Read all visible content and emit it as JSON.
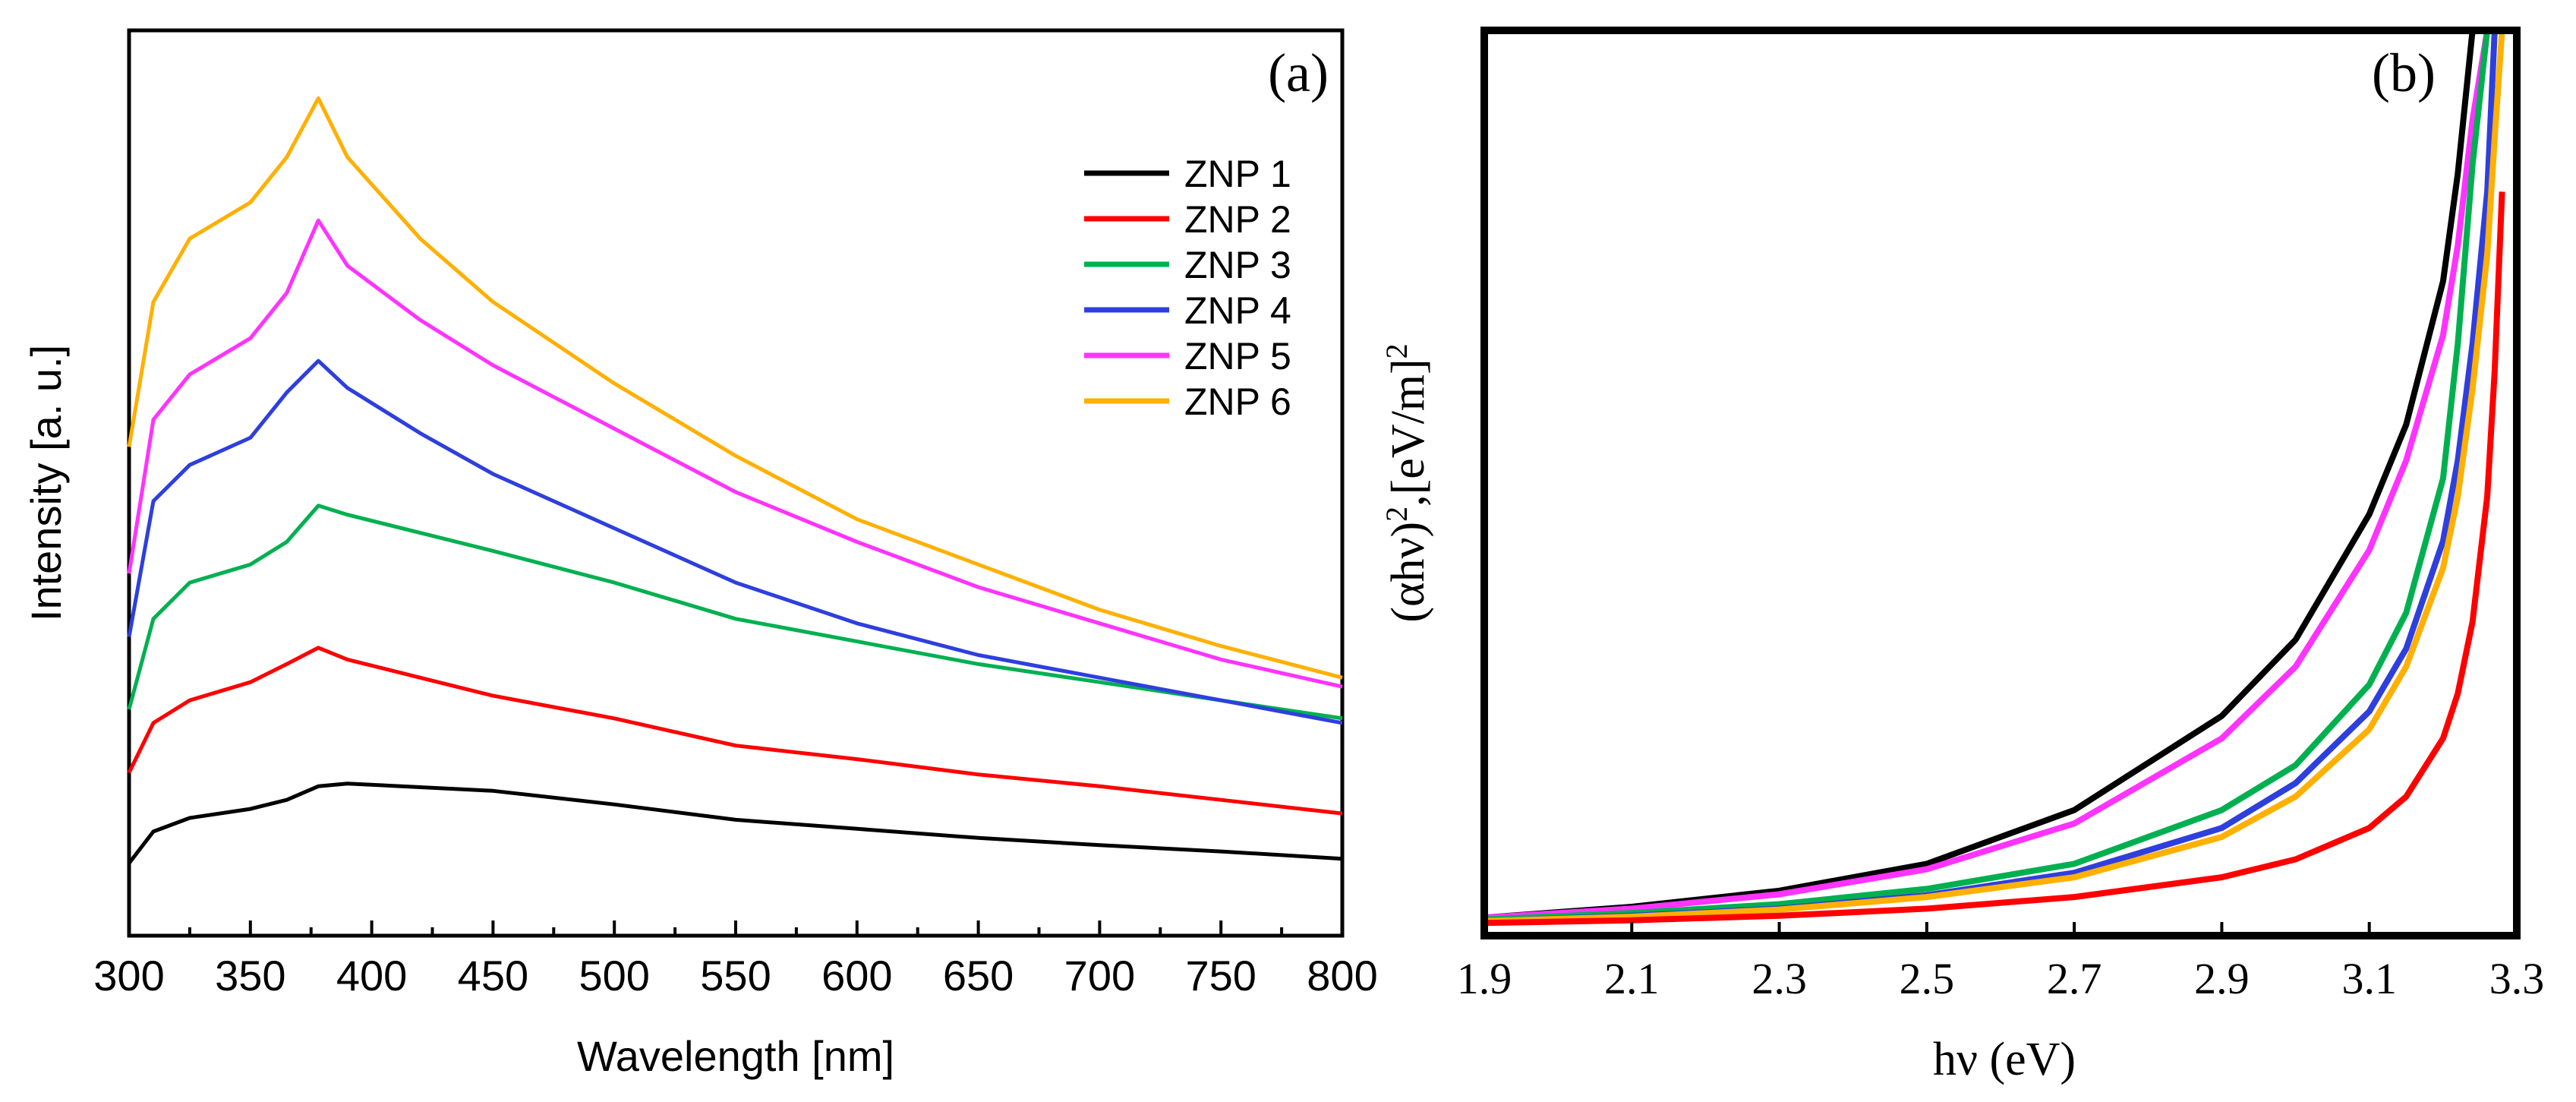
{
  "chart_data": [
    {
      "type": "line",
      "panel_label": "(a)",
      "xlabel": "Wavelength [nm]",
      "ylabel": "Intensity [a. u.]",
      "xlim": [
        300,
        800
      ],
      "ylim": [
        0,
        100
      ],
      "y_ticks_labeled": false,
      "x_ticks": [
        "300",
        "350",
        "400",
        "450",
        "500",
        "550",
        "600",
        "650",
        "700",
        "750",
        "800"
      ],
      "legend_position": "top-right",
      "x": [
        300,
        310,
        325,
        350,
        365,
        378,
        390,
        420,
        450,
        500,
        550,
        600,
        650,
        700,
        750,
        800
      ],
      "series": [
        {
          "name": "ZNP 1",
          "color": "#000000",
          "values": [
            8,
            11.5,
            13,
            14,
            15,
            16.5,
            16.8,
            16.4,
            16,
            14.5,
            12.8,
            11.8,
            10.8,
            10,
            9.3,
            8.5
          ]
        },
        {
          "name": "ZNP 2",
          "color": "#ff0000",
          "values": [
            18,
            23.5,
            26,
            28,
            30,
            31.8,
            30.5,
            28.5,
            26.5,
            24,
            21,
            19.5,
            17.8,
            16.5,
            15,
            13.5
          ]
        },
        {
          "name": "ZNP 3",
          "color": "#00b050",
          "values": [
            25,
            35,
            39,
            41,
            43.5,
            47.5,
            46.5,
            44.5,
            42.5,
            39,
            35,
            32.5,
            30,
            28,
            26,
            24
          ]
        },
        {
          "name": "ZNP 4",
          "color": "#2e3fde",
          "values": [
            33,
            48,
            52,
            55,
            60,
            63.5,
            60.5,
            55.5,
            51,
            45,
            39,
            34.5,
            31,
            28.5,
            26,
            23.5
          ]
        },
        {
          "name": "ZNP 5",
          "color": "#ff33ff",
          "values": [
            40,
            57,
            62,
            66,
            71,
            79,
            74,
            68,
            63,
            56,
            49,
            43.5,
            38.5,
            34.5,
            30.5,
            27.5
          ]
        },
        {
          "name": "ZNP 6",
          "color": "#ffb000",
          "values": [
            54,
            70,
            77,
            81,
            86,
            92.5,
            86,
            77,
            70,
            61,
            53,
            46,
            41,
            36,
            32,
            28.5
          ]
        }
      ]
    },
    {
      "type": "line",
      "panel_label": "(b)",
      "xlabel": "hν (eV)",
      "ylabel_prefix": "(αhν)",
      "ylabel_sup": "2",
      "ylabel_mid": ",[eV/m]",
      "ylabel_sup2": "2",
      "xlim": [
        1.9,
        3.3
      ],
      "ylim": [
        0,
        1
      ],
      "y_ticks_labeled": false,
      "x_ticks": [
        "1.9",
        "2.1",
        "2.3",
        "2.5",
        "2.7",
        "2.9",
        "3.1",
        "3.3"
      ],
      "x": [
        1.9,
        2.1,
        2.3,
        2.5,
        2.7,
        2.9,
        3.0,
        3.1,
        3.15,
        3.2,
        3.22,
        3.24,
        3.26,
        3.27,
        3.28
      ],
      "series": [
        {
          "name": "ZNP 1",
          "color": "#000000",
          "values": [
            0.01,
            0.022,
            0.04,
            0.07,
            0.13,
            0.235,
            0.32,
            0.46,
            0.56,
            0.72,
            0.84,
            1.0,
            null,
            null,
            null
          ]
        },
        {
          "name": "ZNP 5",
          "color": "#ff33ff",
          "values": [
            0.01,
            0.02,
            0.036,
            0.064,
            0.115,
            0.21,
            0.29,
            0.42,
            0.52,
            0.66,
            0.76,
            0.9,
            1.0,
            null,
            null
          ]
        },
        {
          "name": "ZNP 3",
          "color": "#00b050",
          "values": [
            0.008,
            0.015,
            0.025,
            0.042,
            0.07,
            0.13,
            0.18,
            0.27,
            0.35,
            0.5,
            0.65,
            0.85,
            1.0,
            null,
            null
          ]
        },
        {
          "name": "ZNP 4",
          "color": "#2e3fde",
          "values": [
            0.006,
            0.012,
            0.02,
            0.035,
            0.06,
            0.11,
            0.16,
            0.24,
            0.31,
            0.43,
            0.52,
            0.65,
            0.82,
            1.0,
            null
          ]
        },
        {
          "name": "ZNP 6",
          "color": "#ffb000",
          "values": [
            0.006,
            0.011,
            0.019,
            0.033,
            0.055,
            0.1,
            0.145,
            0.22,
            0.29,
            0.4,
            0.48,
            0.6,
            0.75,
            0.88,
            1.0
          ]
        },
        {
          "name": "ZNP 2",
          "color": "#ff0000",
          "values": [
            0.004,
            0.007,
            0.012,
            0.02,
            0.033,
            0.055,
            0.075,
            0.11,
            0.145,
            0.21,
            0.26,
            0.34,
            0.48,
            0.62,
            0.82
          ]
        }
      ]
    }
  ]
}
